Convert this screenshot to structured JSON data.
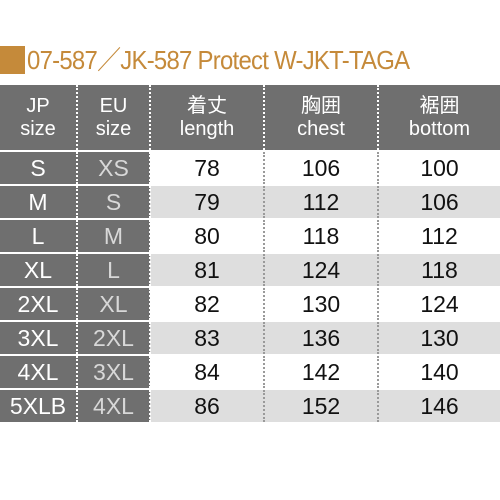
{
  "title": "07-587／JK-587 Protect W-JKT-TAGA",
  "colors": {
    "accent": "#c58a3a",
    "header_bg": "#6f6f6f",
    "row_shade": "#dedede"
  },
  "headers": [
    {
      "line1": "JP",
      "line2": "size"
    },
    {
      "line1": "EU",
      "line2": "size"
    },
    {
      "line1": "着丈",
      "line2": "length"
    },
    {
      "line1": "胸囲",
      "line2": "chest"
    },
    {
      "line1": "裾囲",
      "line2": "bottom"
    }
  ],
  "rows": [
    {
      "jp": "S",
      "eu": "XS",
      "length": "78",
      "chest": "106",
      "bottom": "100"
    },
    {
      "jp": "M",
      "eu": "S",
      "length": "79",
      "chest": "112",
      "bottom": "106"
    },
    {
      "jp": "L",
      "eu": "M",
      "length": "80",
      "chest": "118",
      "bottom": "112"
    },
    {
      "jp": "XL",
      "eu": "L",
      "length": "81",
      "chest": "124",
      "bottom": "118"
    },
    {
      "jp": "2XL",
      "eu": "XL",
      "length": "82",
      "chest": "130",
      "bottom": "124"
    },
    {
      "jp": "3XL",
      "eu": "2XL",
      "length": "83",
      "chest": "136",
      "bottom": "130"
    },
    {
      "jp": "4XL",
      "eu": "3XL",
      "length": "84",
      "chest": "142",
      "bottom": "140"
    },
    {
      "jp": "5XLB",
      "eu": "4XL",
      "length": "86",
      "chest": "152",
      "bottom": "146"
    }
  ]
}
